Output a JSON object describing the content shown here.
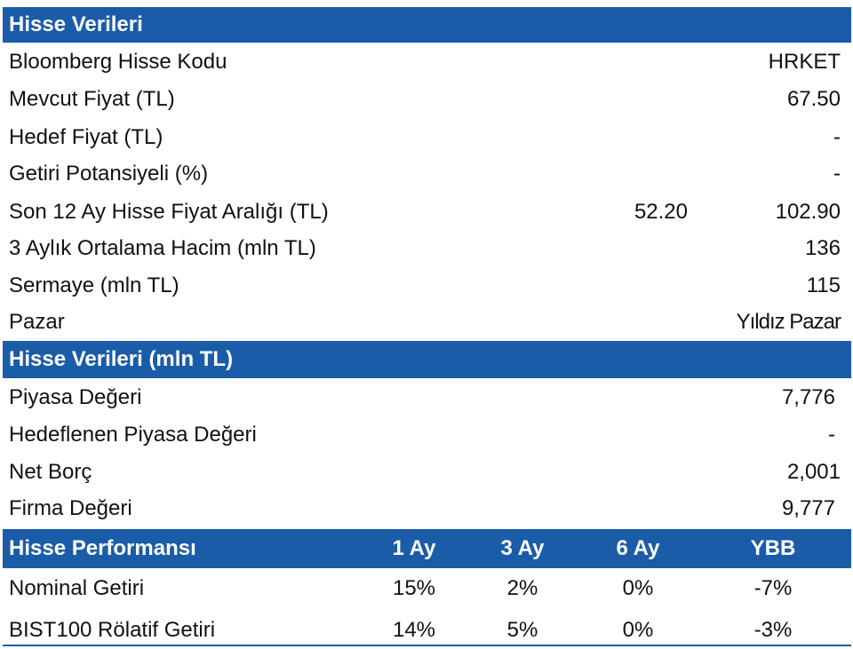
{
  "section1": {
    "title": "Hisse Verileri",
    "rows": [
      {
        "label": "Bloomberg Hisse Kodu",
        "value": "HRKET"
      },
      {
        "label": "Mevcut Fiyat (TL)",
        "value": "67.50"
      },
      {
        "label": "Hedef Fiyat (TL)",
        "value": "-"
      },
      {
        "label": "Getiri Potansiyeli (%)",
        "value": "-"
      },
      {
        "label": "Son 12 Ay Hisse Fiyat Aralığı (TL)",
        "low": "52.20",
        "value": "102.90"
      },
      {
        "label": "3 Aylık Ortalama Hacim (mln TL)",
        "value": "136"
      },
      {
        "label": "Sermaye (mln TL)",
        "value": "115"
      },
      {
        "label": "Pazar",
        "value": "Yıldız Pazar"
      }
    ]
  },
  "section2": {
    "title": "Hisse Verileri (mln TL)",
    "rows": [
      {
        "label": "Piyasa Değeri",
        "value": "7,776"
      },
      {
        "label": "Hedeflenen Piyasa Değeri",
        "value": "-"
      },
      {
        "label": "Net Borç",
        "value": "2,001"
      },
      {
        "label": "Firma Değeri",
        "value": "9,777"
      }
    ]
  },
  "section3": {
    "title": "Hisse Performansı",
    "columns": [
      "1 Ay",
      "3 Ay",
      "6 Ay",
      "YBB"
    ],
    "rows": [
      {
        "label": "Nominal Getiri",
        "values": [
          "15%",
          "2%",
          "0%",
          "-7%"
        ]
      },
      {
        "label": "BIST100 Rölatif Getiri",
        "values": [
          "14%",
          "5%",
          "0%",
          "-3%"
        ]
      }
    ]
  },
  "colors": {
    "header_bg": "#1a5ca8",
    "header_text": "#ffffff"
  }
}
